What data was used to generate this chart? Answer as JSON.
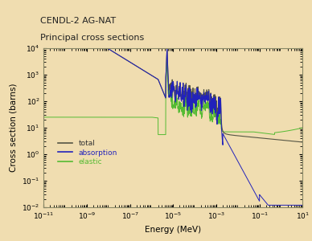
{
  "title_line1": "CENDL-2 AG-NAT",
  "title_line2": "Principal cross sections",
  "xlabel": "Energy (MeV)",
  "ylabel": "Cross section (barns)",
  "xlim_log": [
    -11,
    1
  ],
  "ylim_log": [
    -2,
    4
  ],
  "background_color": "#f0ddb0",
  "plot_bg_color": "#f0ddb0",
  "legend_labels": [
    "total",
    "absorption",
    "elastic"
  ],
  "line_colors": {
    "total": "#555544",
    "absorption": "#2222bb",
    "elastic": "#55bb33"
  },
  "legend_text_colors": {
    "total": "#333333",
    "absorption": "#2222bb",
    "elastic": "#55bb33"
  }
}
